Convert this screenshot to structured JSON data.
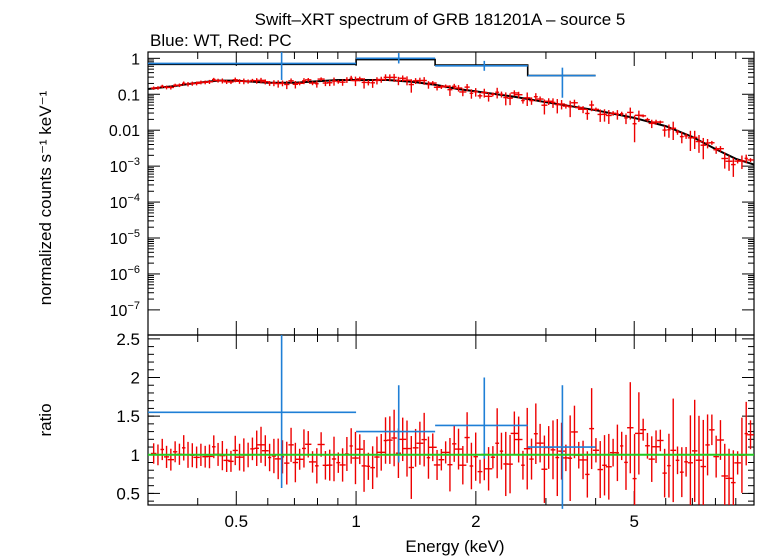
{
  "title": "Swift–XRT spectrum of GRB 181201A – source 5",
  "subtitle": "Blue: WT, Red: PC",
  "colors": {
    "wt": "#1f7fd6",
    "pc": "#ee0000",
    "model": "#000000",
    "unity": "#22cc22"
  },
  "chart_data": [
    {
      "type": "line",
      "panel": "spectrum",
      "ylabel": "normalized counts s⁻¹ keV⁻¹",
      "xscale": "log",
      "yscale": "log",
      "xlim": [
        0.3,
        10
      ],
      "ylim": [
        2e-08,
        1.5
      ],
      "yticks": [
        {
          "v": 1,
          "label": "1"
        },
        {
          "v": 0.1,
          "label": "0.1"
        },
        {
          "v": 0.01,
          "label": "0.01"
        },
        {
          "v": 0.001,
          "base": "10",
          "exp": "−3"
        },
        {
          "v": 0.0001,
          "base": "10",
          "exp": "−4"
        },
        {
          "v": 1e-05,
          "base": "10",
          "exp": "−5"
        },
        {
          "v": 1e-06,
          "base": "10",
          "exp": "−6"
        },
        {
          "v": 1e-07,
          "base": "10",
          "exp": "−7"
        }
      ],
      "wt_points": [
        {
          "x": 0.65,
          "xlo": 0.3,
          "xhi": 1.0,
          "y": 0.72,
          "ylo": 0.25,
          "yhi": 1.5
        },
        {
          "x": 1.28,
          "xlo": 1.0,
          "xhi": 1.58,
          "y": 1.0,
          "ylo": 0.72,
          "yhi": 1.4
        },
        {
          "x": 2.1,
          "xlo": 1.58,
          "xhi": 2.7,
          "y": 0.62,
          "ylo": 0.45,
          "yhi": 0.85
        },
        {
          "x": 3.3,
          "xlo": 2.7,
          "xhi": 4.0,
          "y": 0.33,
          "ylo": 0.08,
          "yhi": 0.55
        }
      ],
      "wt_model": [
        [
          0.3,
          0.68
        ],
        [
          1.0,
          0.68
        ],
        [
          1.0,
          0.92
        ],
        [
          1.58,
          0.92
        ],
        [
          1.58,
          0.65
        ],
        [
          2.7,
          0.65
        ],
        [
          2.7,
          0.33
        ],
        [
          4.0,
          0.33
        ]
      ],
      "pc_model": [
        [
          0.3,
          0.14
        ],
        [
          0.35,
          0.17
        ],
        [
          0.4,
          0.21
        ],
        [
          0.45,
          0.24
        ],
        [
          0.5,
          0.24
        ],
        [
          0.6,
          0.21
        ],
        [
          0.7,
          0.21
        ],
        [
          0.8,
          0.23
        ],
        [
          0.9,
          0.25
        ],
        [
          1.0,
          0.25
        ],
        [
          1.2,
          0.25
        ],
        [
          1.4,
          0.22
        ],
        [
          1.6,
          0.18
        ],
        [
          1.8,
          0.14
        ],
        [
          2.0,
          0.12
        ],
        [
          2.5,
          0.085
        ],
        [
          3.0,
          0.06
        ],
        [
          4.0,
          0.036
        ],
        [
          5.0,
          0.022
        ],
        [
          6.0,
          0.013
        ],
        [
          7.0,
          0.0065
        ],
        [
          8.0,
          0.003
        ],
        [
          9.0,
          0.0016
        ],
        [
          10.0,
          0.0011
        ]
      ]
    },
    {
      "type": "scatter",
      "panel": "ratio",
      "xlabel": "Energy (keV)",
      "ylabel": "ratio",
      "xscale": "log",
      "xlim": [
        0.3,
        10
      ],
      "ylim": [
        0.35,
        2.55
      ],
      "xticks": [
        {
          "v": 0.5,
          "label": "0.5"
        },
        {
          "v": 1,
          "label": "1"
        },
        {
          "v": 2,
          "label": "2"
        },
        {
          "v": 5,
          "label": "5"
        }
      ],
      "yticks": [
        {
          "v": 0.5,
          "label": "0.5"
        },
        {
          "v": 1,
          "label": "1"
        },
        {
          "v": 1.5,
          "label": "1.5"
        },
        {
          "v": 2,
          "label": "2"
        },
        {
          "v": 2.5,
          "label": "2.5"
        }
      ],
      "unity": 1.0,
      "wt_points": [
        {
          "x": 0.65,
          "xlo": 0.3,
          "xhi": 1.0,
          "y": 1.55,
          "ylo": 0.57,
          "yhi": 2.55
        },
        {
          "x": 1.28,
          "xlo": 1.0,
          "xhi": 1.58,
          "y": 1.3,
          "ylo": 0.9,
          "yhi": 1.9
        },
        {
          "x": 2.1,
          "xlo": 1.58,
          "xhi": 2.7,
          "y": 1.38,
          "ylo": 0.95,
          "yhi": 2.0
        },
        {
          "x": 3.3,
          "xlo": 2.7,
          "xhi": 4.0,
          "y": 1.1,
          "ylo": 0.3,
          "yhi": 1.9
        }
      ]
    }
  ]
}
